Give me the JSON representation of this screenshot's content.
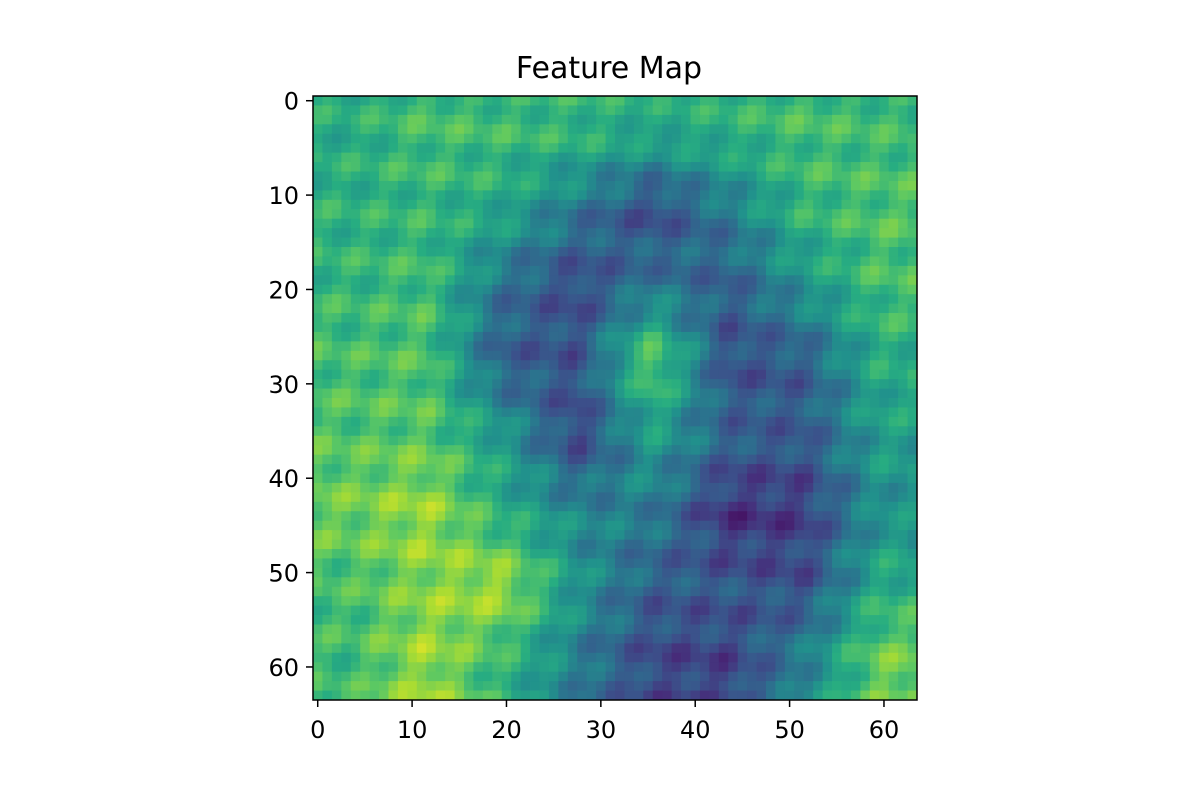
{
  "chart_data": {
    "type": "heatmap",
    "title": "Feature Map",
    "xlabel": "",
    "ylabel": "",
    "colormap": "viridis",
    "grid": false,
    "rows": 64,
    "cols": 64,
    "xlim": [
      -0.5,
      63.5
    ],
    "ylim": [
      63.5,
      -0.5
    ],
    "xticks": [
      0,
      10,
      20,
      30,
      40,
      50,
      60
    ],
    "yticks": [
      0,
      10,
      20,
      30,
      40,
      50,
      60
    ],
    "xtick_labels": [
      "0",
      "10",
      "20",
      "30",
      "40",
      "50",
      "60"
    ],
    "ytick_labels": [
      "0",
      "10",
      "20",
      "30",
      "40",
      "50",
      "60"
    ],
    "colors": {
      "background": "#ffffff",
      "axes_frame": "#000000",
      "low": "#440154",
      "mid": "#21918c",
      "high": "#fde725"
    },
    "values_approx_8x8_blocks": [
      [
        0.62,
        0.7,
        0.68,
        0.66,
        0.6,
        0.64,
        0.7,
        0.68
      ],
      [
        0.64,
        0.66,
        0.6,
        0.4,
        0.22,
        0.42,
        0.66,
        0.72
      ],
      [
        0.66,
        0.7,
        0.38,
        0.22,
        0.4,
        0.3,
        0.52,
        0.7
      ],
      [
        0.7,
        0.72,
        0.3,
        0.26,
        0.78,
        0.24,
        0.3,
        0.62
      ],
      [
        0.72,
        0.74,
        0.55,
        0.2,
        0.56,
        0.32,
        0.28,
        0.56
      ],
      [
        0.78,
        0.86,
        0.62,
        0.46,
        0.42,
        0.14,
        0.18,
        0.5
      ],
      [
        0.7,
        0.82,
        0.88,
        0.52,
        0.3,
        0.28,
        0.24,
        0.62
      ],
      [
        0.68,
        0.86,
        0.66,
        0.42,
        0.22,
        0.2,
        0.44,
        0.78
      ]
    ]
  }
}
